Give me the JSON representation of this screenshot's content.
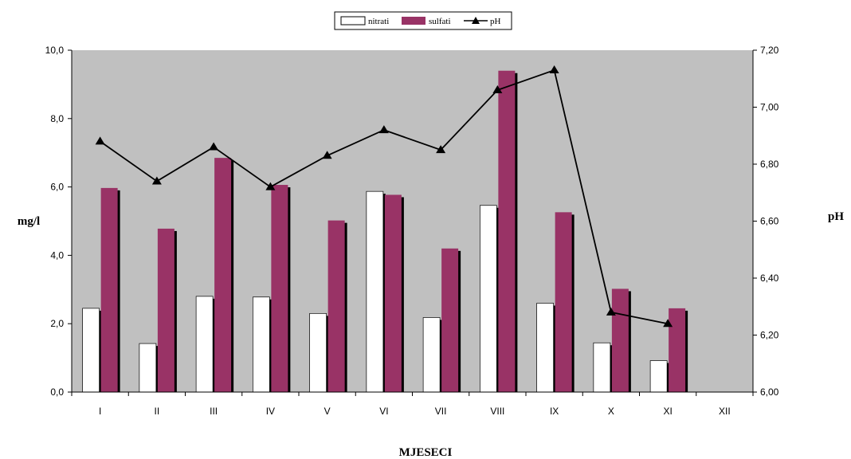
{
  "chart_data": {
    "type": "bar",
    "categories": [
      "I",
      "II",
      "III",
      "IV",
      "V",
      "VI",
      "VII",
      "VIII",
      "IX",
      "X",
      "XI",
      "XII"
    ],
    "series": [
      {
        "name": "nitrati",
        "type": "bar",
        "axis": "left",
        "color": "#ffffff",
        "values": [
          2.45,
          1.42,
          2.8,
          2.78,
          2.3,
          5.87,
          2.18,
          5.46,
          2.6,
          1.44,
          0.92,
          null
        ]
      },
      {
        "name": "sulfati",
        "type": "bar",
        "axis": "left",
        "color": "#993366",
        "values": [
          5.97,
          4.78,
          6.85,
          6.06,
          5.02,
          5.77,
          4.2,
          9.4,
          5.26,
          3.02,
          2.45,
          null
        ]
      },
      {
        "name": "pH",
        "type": "line",
        "axis": "right",
        "color": "#000000",
        "values": [
          6.88,
          6.74,
          6.86,
          6.72,
          6.83,
          6.92,
          6.85,
          7.06,
          7.13,
          6.28,
          6.24,
          null
        ]
      }
    ],
    "xlabel": "MJESECI",
    "ylabel": "mg/l",
    "y2label": "pH",
    "ylim": [
      0,
      10
    ],
    "y2lim": [
      6.0,
      7.2
    ],
    "yticks": [
      "0,0",
      "2,0",
      "4,0",
      "6,0",
      "8,0",
      "10,0"
    ],
    "y2ticks": [
      "6,00",
      "6,20",
      "6,40",
      "6,60",
      "6,80",
      "7,00",
      "7,20"
    ],
    "grid": false,
    "plot_background": "#c0c0c0",
    "legend_position": "top-center"
  }
}
